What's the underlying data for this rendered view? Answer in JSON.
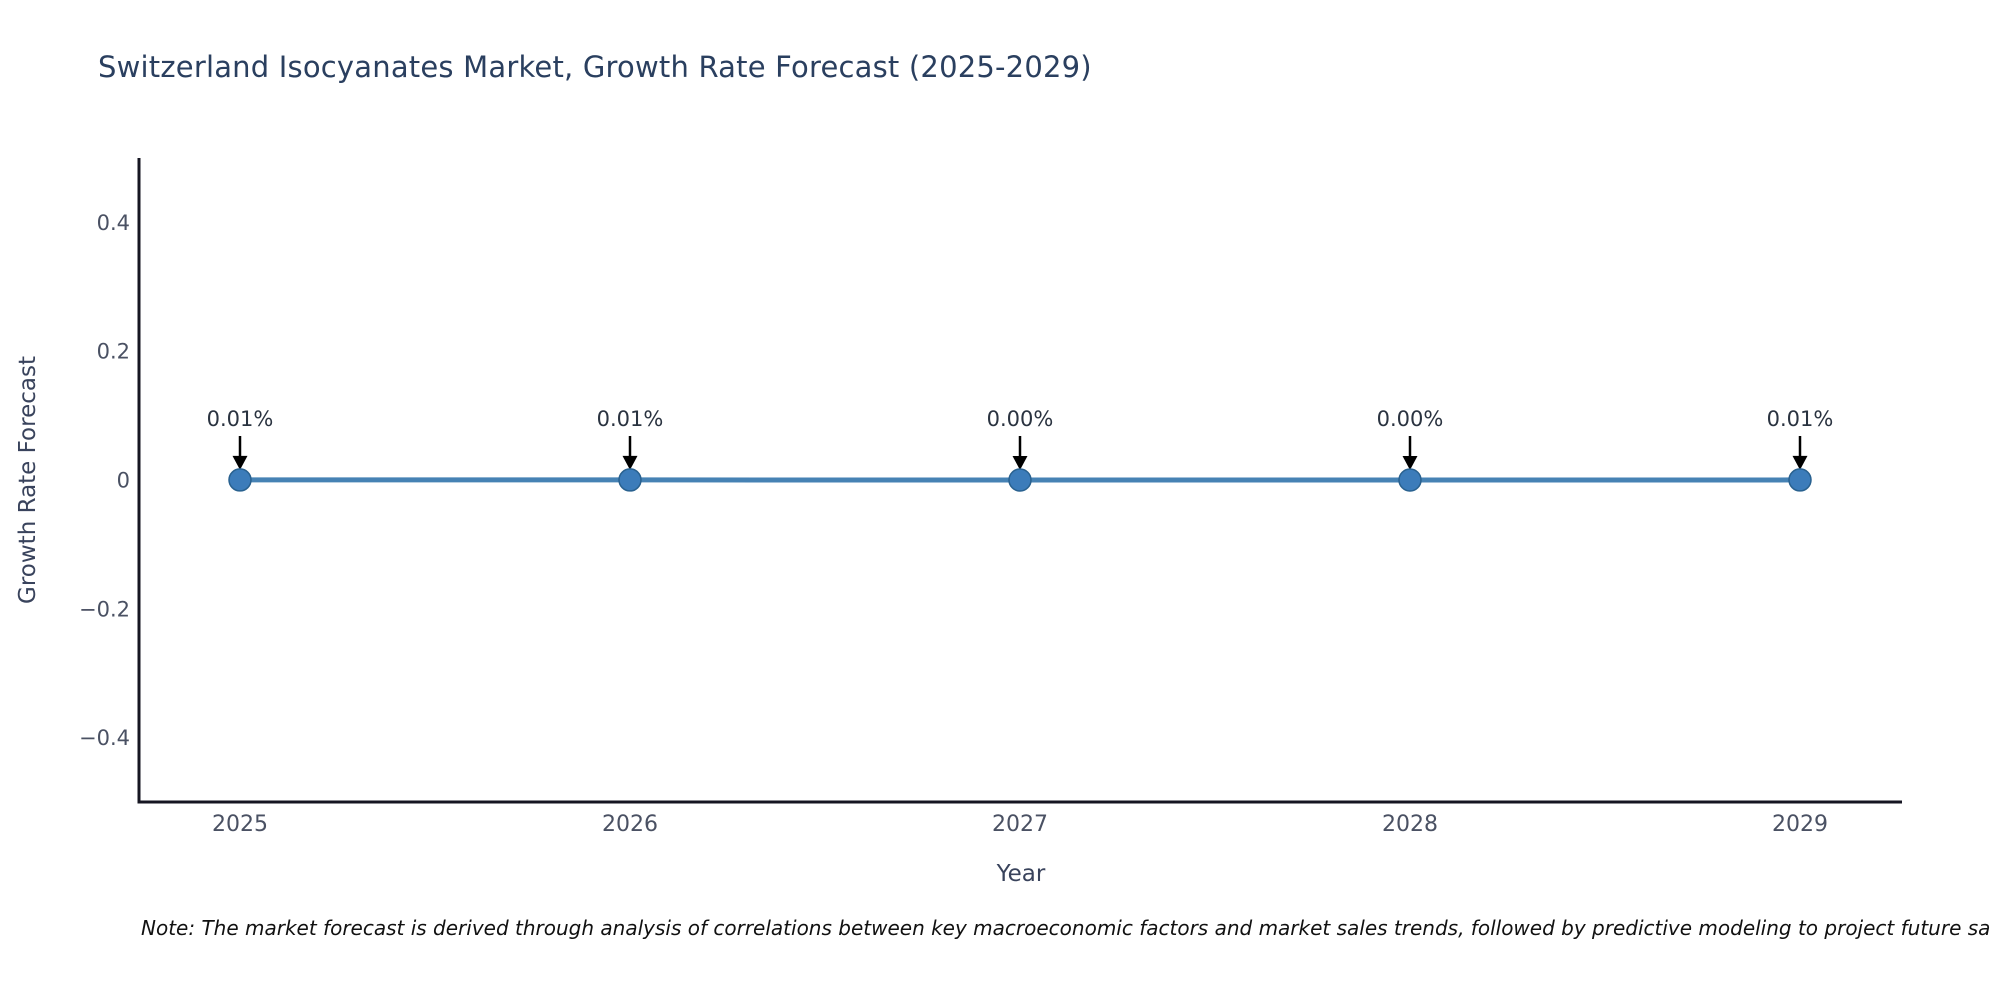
{
  "chart_data": {
    "type": "line",
    "title": "Switzerland Isocyanates Market, Growth Rate Forecast (2025-2029)",
    "xlabel": "Year",
    "ylabel": "Growth Rate Forecast",
    "categories": [
      "2025",
      "2026",
      "2027",
      "2028",
      "2029"
    ],
    "series": [
      {
        "name": "Growth Rate Forecast",
        "values_percent": [
          0.01,
          0.01,
          0.0,
          0.0,
          0.01
        ],
        "point_labels": [
          "0.01%",
          "0.01%",
          "0.00%",
          "0.00%",
          "0.01%"
        ]
      }
    ],
    "ylim": [
      -0.5,
      0.5
    ],
    "yticks": [
      {
        "value": 0.4,
        "label": "0.4"
      },
      {
        "value": 0.2,
        "label": "0.2"
      },
      {
        "value": 0,
        "label": "0"
      },
      {
        "value": -0.2,
        "label": "−0.2"
      },
      {
        "value": -0.4,
        "label": "−0.4"
      }
    ],
    "grid": false,
    "legend_position": "none",
    "annotation_style": "down-arrow-to-point",
    "colors": {
      "line": "#4682b4",
      "marker_fill": "#3c7cba",
      "marker_edge": "#29618f",
      "arrow": "#000000",
      "axis_line": "#161622",
      "title_text": "#2a3f5f",
      "tick_text": "#4a5163",
      "annotation_text": "#2a3340",
      "note_text": "#111111"
    },
    "note": "Note: The market forecast is derived through analysis of correlations between key macroeconomic factors and market sales trends, followed by predictive modeling to project future sa"
  }
}
